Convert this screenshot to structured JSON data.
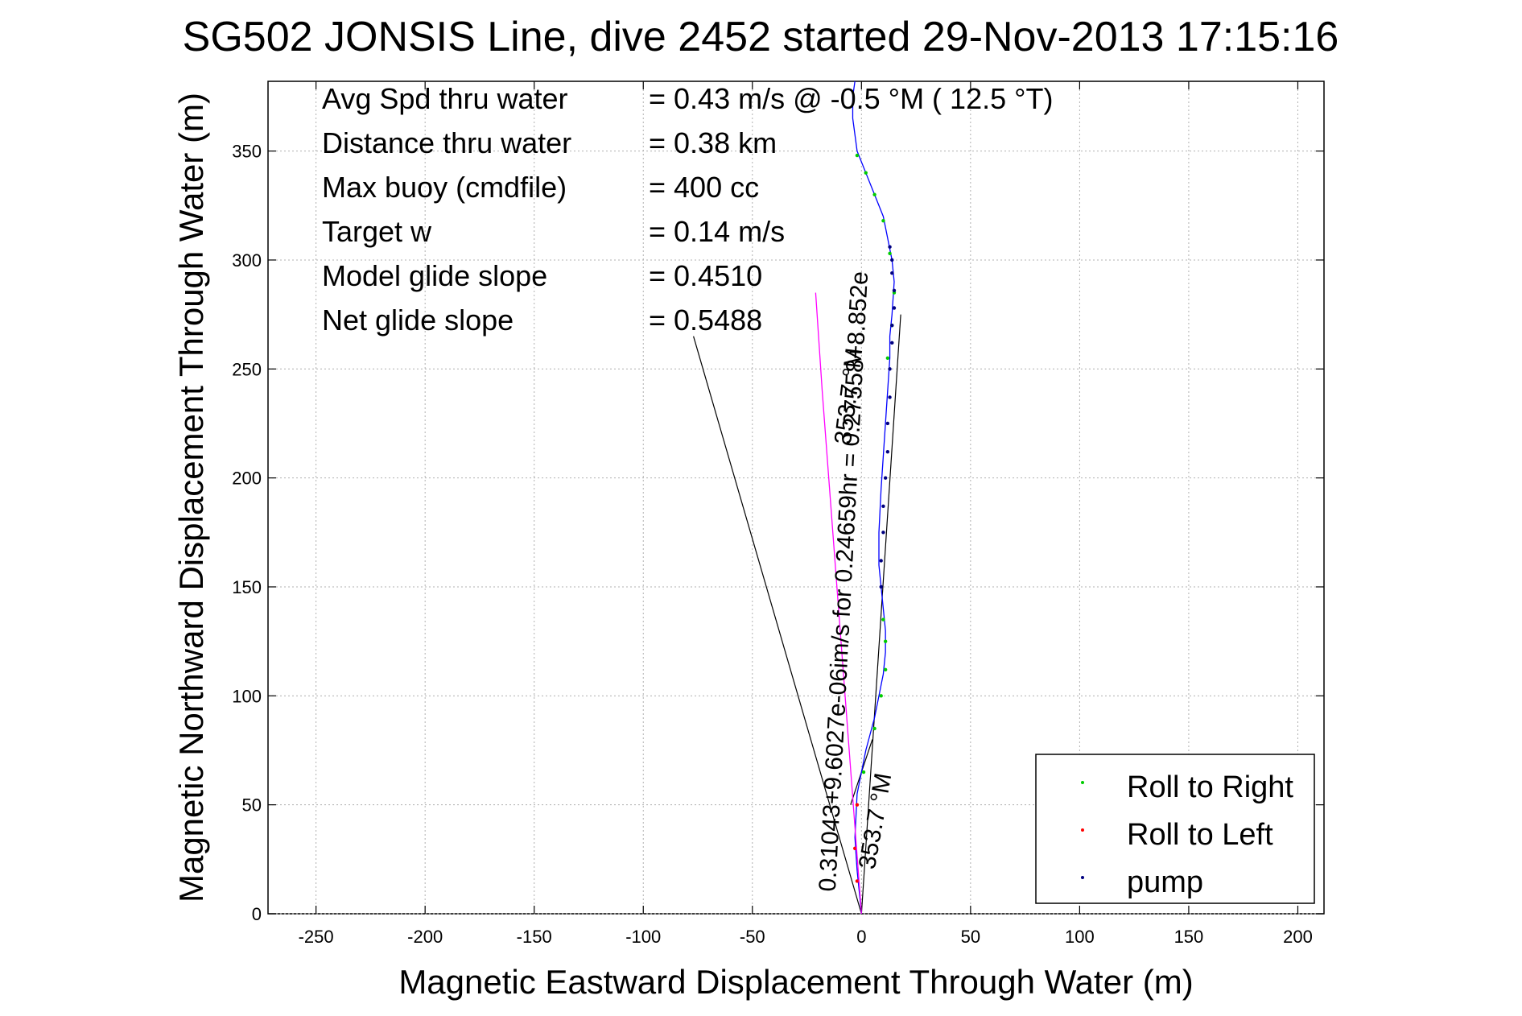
{
  "window": {
    "title": "SG502 JONSIS Line, dive 2452 started 29-Nov-2013 17:15:16"
  },
  "chart_data": {
    "type": "line",
    "title": "SG502 JONSIS Line, dive 2452 started 29-Nov-2013 17:15:16",
    "xlabel": "Magnetic Eastward Displacement Through Water (m)",
    "ylabel": "Magnetic Northward Displacement Through Water (m)",
    "xlim": [
      -272,
      212
    ],
    "ylim": [
      0,
      382
    ],
    "xticks": [
      -250,
      -200,
      -150,
      -100,
      -50,
      0,
      50,
      100,
      150,
      200
    ],
    "yticks": [
      0,
      50,
      100,
      150,
      200,
      250,
      300,
      350
    ],
    "xtick_labels": [
      "-250",
      "-200",
      "-150",
      "-100",
      "-50",
      "0",
      "50",
      "100",
      "150",
      "200"
    ],
    "ytick_labels": [
      "0",
      "50",
      "100",
      "150",
      "200",
      "250",
      "300",
      "350"
    ],
    "grid": true,
    "legend_position": "bottom-right",
    "stats": [
      {
        "label": "Avg Spd thru water",
        "value": "=  0.43 m/s @  -0.5 °M ( 12.5 °T)"
      },
      {
        "label": "Distance thru water",
        "value": "=  0.38 km"
      },
      {
        "label": "Max buoy (cmdfile)",
        "value": "= 400 cc"
      },
      {
        "label": "Target w",
        "value": "= 0.14 m/s"
      },
      {
        "label": "Model glide slope",
        "value": "= 0.4510"
      },
      {
        "label": "Net glide slope",
        "value": "= 0.5488"
      }
    ],
    "fit_annotations": [
      {
        "text": "0.31043+9.6027e-06im/s for 0.24659hr = 0.27558+8.852e",
        "angle": -87,
        "anchor": [
          -12,
          10
        ]
      },
      {
        "text": "353.7 °M",
        "angle": -83,
        "anchor": [
          -5,
          215
        ]
      },
      {
        "text": "353.7 °M",
        "angle": -80,
        "anchor": [
          6,
          20
        ]
      }
    ],
    "series": [
      {
        "name": "",
        "color": "#0000ff",
        "x": [
          0,
          -1,
          -2,
          -3,
          -2,
          2,
          6,
          8,
          10,
          11,
          11,
          10,
          9,
          8,
          8,
          9,
          10,
          11,
          12,
          13,
          13,
          14,
          15,
          14,
          12,
          10,
          6,
          2,
          -2,
          -4,
          -4,
          -3
        ],
        "y": [
          0,
          10,
          20,
          35,
          55,
          75,
          90,
          100,
          110,
          120,
          130,
          140,
          150,
          160,
          175,
          195,
          210,
          225,
          240,
          255,
          265,
          275,
          290,
          300,
          310,
          320,
          330,
          340,
          350,
          365,
          375,
          382
        ]
      },
      {
        "name": "Roll to Right",
        "color": "#00cc00",
        "x": [
          1,
          6,
          9,
          11,
          11,
          10,
          12,
          14,
          15,
          13,
          10,
          6,
          2,
          -2
        ],
        "y": [
          65,
          85,
          100,
          112,
          125,
          135,
          255,
          270,
          285,
          303,
          318,
          330,
          340,
          348
        ]
      },
      {
        "name": "Roll to Left",
        "color": "#ff0000",
        "x": [
          -2,
          -3,
          -2
        ],
        "y": [
          15,
          30,
          50
        ]
      },
      {
        "name": "pump",
        "color": "#000080",
        "x": [
          9,
          9,
          10,
          10,
          11,
          12,
          12,
          13,
          13,
          14,
          14,
          15,
          15,
          14,
          14,
          13
        ],
        "y": [
          150,
          162,
          175,
          187,
          200,
          212,
          225,
          237,
          250,
          262,
          270,
          278,
          286,
          294,
          300,
          306
        ]
      },
      {
        "name": "",
        "color": "#ff00ff",
        "x": [
          0,
          -3,
          -6,
          -9,
          -12,
          -15,
          -18,
          -20,
          -21
        ],
        "y": [
          0,
          40,
          80,
          120,
          160,
          200,
          240,
          270,
          285
        ]
      }
    ],
    "lines": [
      {
        "color": "#000000",
        "x": [
          0,
          -77
        ],
        "y": [
          0,
          265
        ]
      },
      {
        "color": "#000000",
        "x": [
          0,
          18
        ],
        "y": [
          0,
          275
        ]
      },
      {
        "color": "#000000",
        "x": [
          -5,
          5
        ],
        "y": [
          50,
          80
        ]
      }
    ]
  }
}
